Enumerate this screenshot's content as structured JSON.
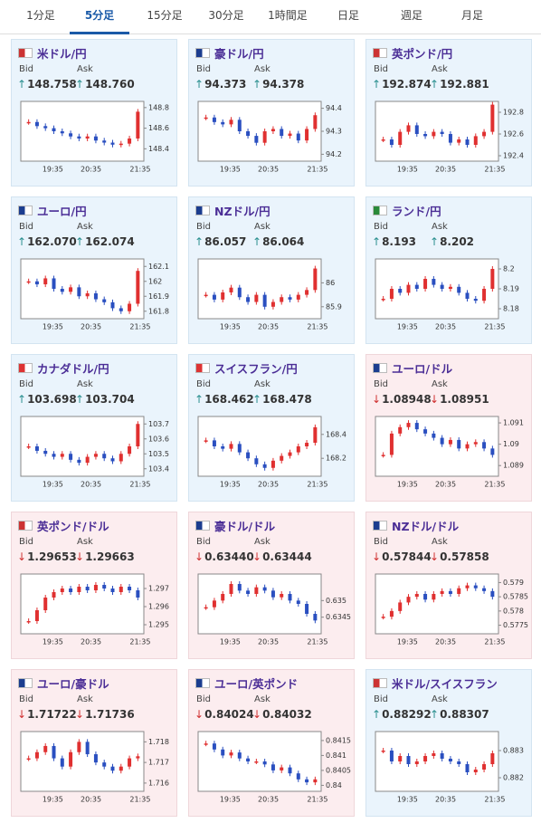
{
  "tabs": {
    "items": [
      "1分足",
      "5分足",
      "15分足",
      "30分足",
      "1時間足",
      "日足",
      "週足",
      "月足"
    ],
    "active": 1
  },
  "labels": {
    "bid": "Bid",
    "ask": "Ask"
  },
  "time_labels": [
    "19:35",
    "20:35",
    "21:35"
  ],
  "cards": [
    {
      "name": "米ドル/円",
      "direction": "up",
      "arrow": "↑",
      "bid": "148.758",
      "ask": "148.760",
      "ylim": [
        148.28,
        148.86
      ],
      "yticks": [
        148.4,
        148.6,
        148.8
      ],
      "values": [
        148.66,
        148.62,
        148.6,
        148.57,
        148.55,
        148.52,
        148.5,
        148.52,
        148.48,
        148.46,
        148.44,
        148.45,
        148.5,
        148.76
      ]
    },
    {
      "name": "豪ドル/円",
      "direction": "up",
      "arrow": "↑",
      "bid": "94.373",
      "ask": "94.378",
      "ylim": [
        94.17,
        94.43
      ],
      "yticks": [
        94.2,
        94.3,
        94.4
      ],
      "values": [
        94.36,
        94.34,
        94.33,
        94.35,
        94.3,
        94.28,
        94.25,
        94.3,
        94.31,
        94.28,
        94.29,
        94.26,
        94.31,
        94.37
      ]
    },
    {
      "name": "英ポンド/円",
      "direction": "up",
      "arrow": "↑",
      "bid": "192.874",
      "ask": "192.881",
      "ylim": [
        192.35,
        192.9
      ],
      "yticks": [
        192.4,
        192.6,
        192.8
      ],
      "values": [
        192.55,
        192.5,
        192.62,
        192.68,
        192.6,
        192.58,
        192.62,
        192.6,
        192.52,
        192.55,
        192.5,
        192.58,
        192.62,
        192.87
      ]
    },
    {
      "name": "ユーロ/円",
      "direction": "up",
      "arrow": "↑",
      "bid": "162.070",
      "ask": "162.074",
      "ylim": [
        161.75,
        162.15
      ],
      "yticks": [
        161.8,
        161.9,
        162,
        162.1
      ],
      "values": [
        162.0,
        161.98,
        162.02,
        161.95,
        161.93,
        161.96,
        161.9,
        161.92,
        161.88,
        161.86,
        161.82,
        161.8,
        161.85,
        162.07
      ]
    },
    {
      "name": "NZドル/円",
      "direction": "up",
      "arrow": "↑",
      "bid": "86.057",
      "ask": "86.064",
      "ylim": [
        85.85,
        86.1
      ],
      "yticks": [
        85.9,
        86
      ],
      "values": [
        85.95,
        85.93,
        85.96,
        85.98,
        85.94,
        85.92,
        85.95,
        85.9,
        85.92,
        85.94,
        85.93,
        85.95,
        85.97,
        86.06
      ]
    },
    {
      "name": "ランド/円",
      "direction": "up",
      "arrow": "↑",
      "bid": "8.193",
      "ask": "8.202",
      "ylim": [
        8.175,
        8.205
      ],
      "yticks": [
        8.18,
        8.19,
        8.2
      ],
      "values": [
        8.185,
        8.19,
        8.188,
        8.192,
        8.19,
        8.195,
        8.192,
        8.19,
        8.191,
        8.188,
        8.185,
        8.184,
        8.19,
        8.2
      ]
    },
    {
      "name": "カナダドル/円",
      "direction": "up",
      "arrow": "↑",
      "bid": "103.698",
      "ask": "103.704",
      "ylim": [
        103.35,
        103.75
      ],
      "yticks": [
        103.4,
        103.5,
        103.6,
        103.7
      ],
      "values": [
        103.55,
        103.52,
        103.5,
        103.48,
        103.5,
        103.46,
        103.44,
        103.48,
        103.5,
        103.47,
        103.45,
        103.5,
        103.55,
        103.7
      ]
    },
    {
      "name": "スイスフラン/円",
      "direction": "up",
      "arrow": "↑",
      "bid": "168.462",
      "ask": "168.478",
      "ylim": [
        168.05,
        168.55
      ],
      "yticks": [
        168.2,
        168.4
      ],
      "values": [
        168.35,
        168.3,
        168.28,
        168.32,
        168.25,
        168.2,
        168.15,
        168.12,
        168.18,
        168.22,
        168.25,
        168.3,
        168.33,
        168.46
      ]
    },
    {
      "name": "ユーロ/ドル",
      "direction": "down",
      "arrow": "↓",
      "bid": "1.08948",
      "ask": "1.08951",
      "ylim": [
        1.0885,
        1.0913
      ],
      "yticks": [
        1.089,
        1.09,
        1.091
      ],
      "values": [
        1.0895,
        1.0905,
        1.0908,
        1.091,
        1.0907,
        1.0905,
        1.0903,
        1.09,
        1.0902,
        1.0898,
        1.09,
        1.0901,
        1.0898,
        1.0895
      ]
    },
    {
      "name": "英ポンド/ドル",
      "direction": "down",
      "arrow": "↓",
      "bid": "1.29653",
      "ask": "1.29663",
      "ylim": [
        1.2945,
        1.2978
      ],
      "yticks": [
        1.295,
        1.296,
        1.297
      ],
      "values": [
        1.2952,
        1.2958,
        1.2965,
        1.2968,
        1.297,
        1.2968,
        1.2971,
        1.2969,
        1.2972,
        1.297,
        1.2968,
        1.2971,
        1.2969,
        1.2965
      ]
    },
    {
      "name": "豪ドル/ドル",
      "direction": "down",
      "arrow": "↓",
      "bid": "0.63440",
      "ask": "0.63444",
      "ylim": [
        0.634,
        0.6358
      ],
      "yticks": [
        0.6345,
        0.635
      ],
      "values": [
        0.6348,
        0.635,
        0.6352,
        0.6355,
        0.6353,
        0.6352,
        0.6354,
        0.6353,
        0.6351,
        0.6352,
        0.635,
        0.6349,
        0.6346,
        0.6344
      ]
    },
    {
      "name": "NZドル/ドル",
      "direction": "down",
      "arrow": "↓",
      "bid": "0.57844",
      "ask": "0.57858",
      "ylim": [
        0.5772,
        0.5793
      ],
      "yticks": [
        0.5775,
        0.578,
        0.5785,
        0.579
      ],
      "values": [
        0.5778,
        0.578,
        0.5783,
        0.5785,
        0.5786,
        0.5784,
        0.5786,
        0.5787,
        0.5786,
        0.5788,
        0.5789,
        0.5788,
        0.5787,
        0.5785
      ]
    },
    {
      "name": "ユーロ/豪ドル",
      "direction": "down",
      "arrow": "↓",
      "bid": "1.71722",
      "ask": "1.71736",
      "ylim": [
        1.7156,
        1.7185
      ],
      "yticks": [
        1.716,
        1.717,
        1.718
      ],
      "values": [
        1.7172,
        1.7175,
        1.7178,
        1.7172,
        1.7168,
        1.7175,
        1.718,
        1.7174,
        1.717,
        1.7168,
        1.7166,
        1.7168,
        1.7172,
        1.7173
      ]
    },
    {
      "name": "ユーロ/英ポンド",
      "direction": "down",
      "arrow": "↓",
      "bid": "0.84024",
      "ask": "0.84032",
      "ylim": [
        0.8398,
        0.8418
      ],
      "yticks": [
        0.84,
        0.8405,
        0.841,
        0.8415
      ],
      "values": [
        0.8414,
        0.8412,
        0.841,
        0.8411,
        0.8409,
        0.8408,
        0.8408,
        0.8407,
        0.8405,
        0.8406,
        0.8404,
        0.8402,
        0.8401,
        0.8402
      ]
    },
    {
      "name": "米ドル/スイスフラン",
      "direction": "up",
      "arrow": "↑",
      "bid": "0.88292",
      "ask": "0.88307",
      "ylim": [
        0.8815,
        0.8837
      ],
      "yticks": [
        0.882,
        0.883
      ],
      "values": [
        0.883,
        0.8826,
        0.8828,
        0.8825,
        0.8826,
        0.8828,
        0.8829,
        0.8827,
        0.8826,
        0.8825,
        0.8822,
        0.8823,
        0.8825,
        0.8829
      ]
    }
  ]
}
